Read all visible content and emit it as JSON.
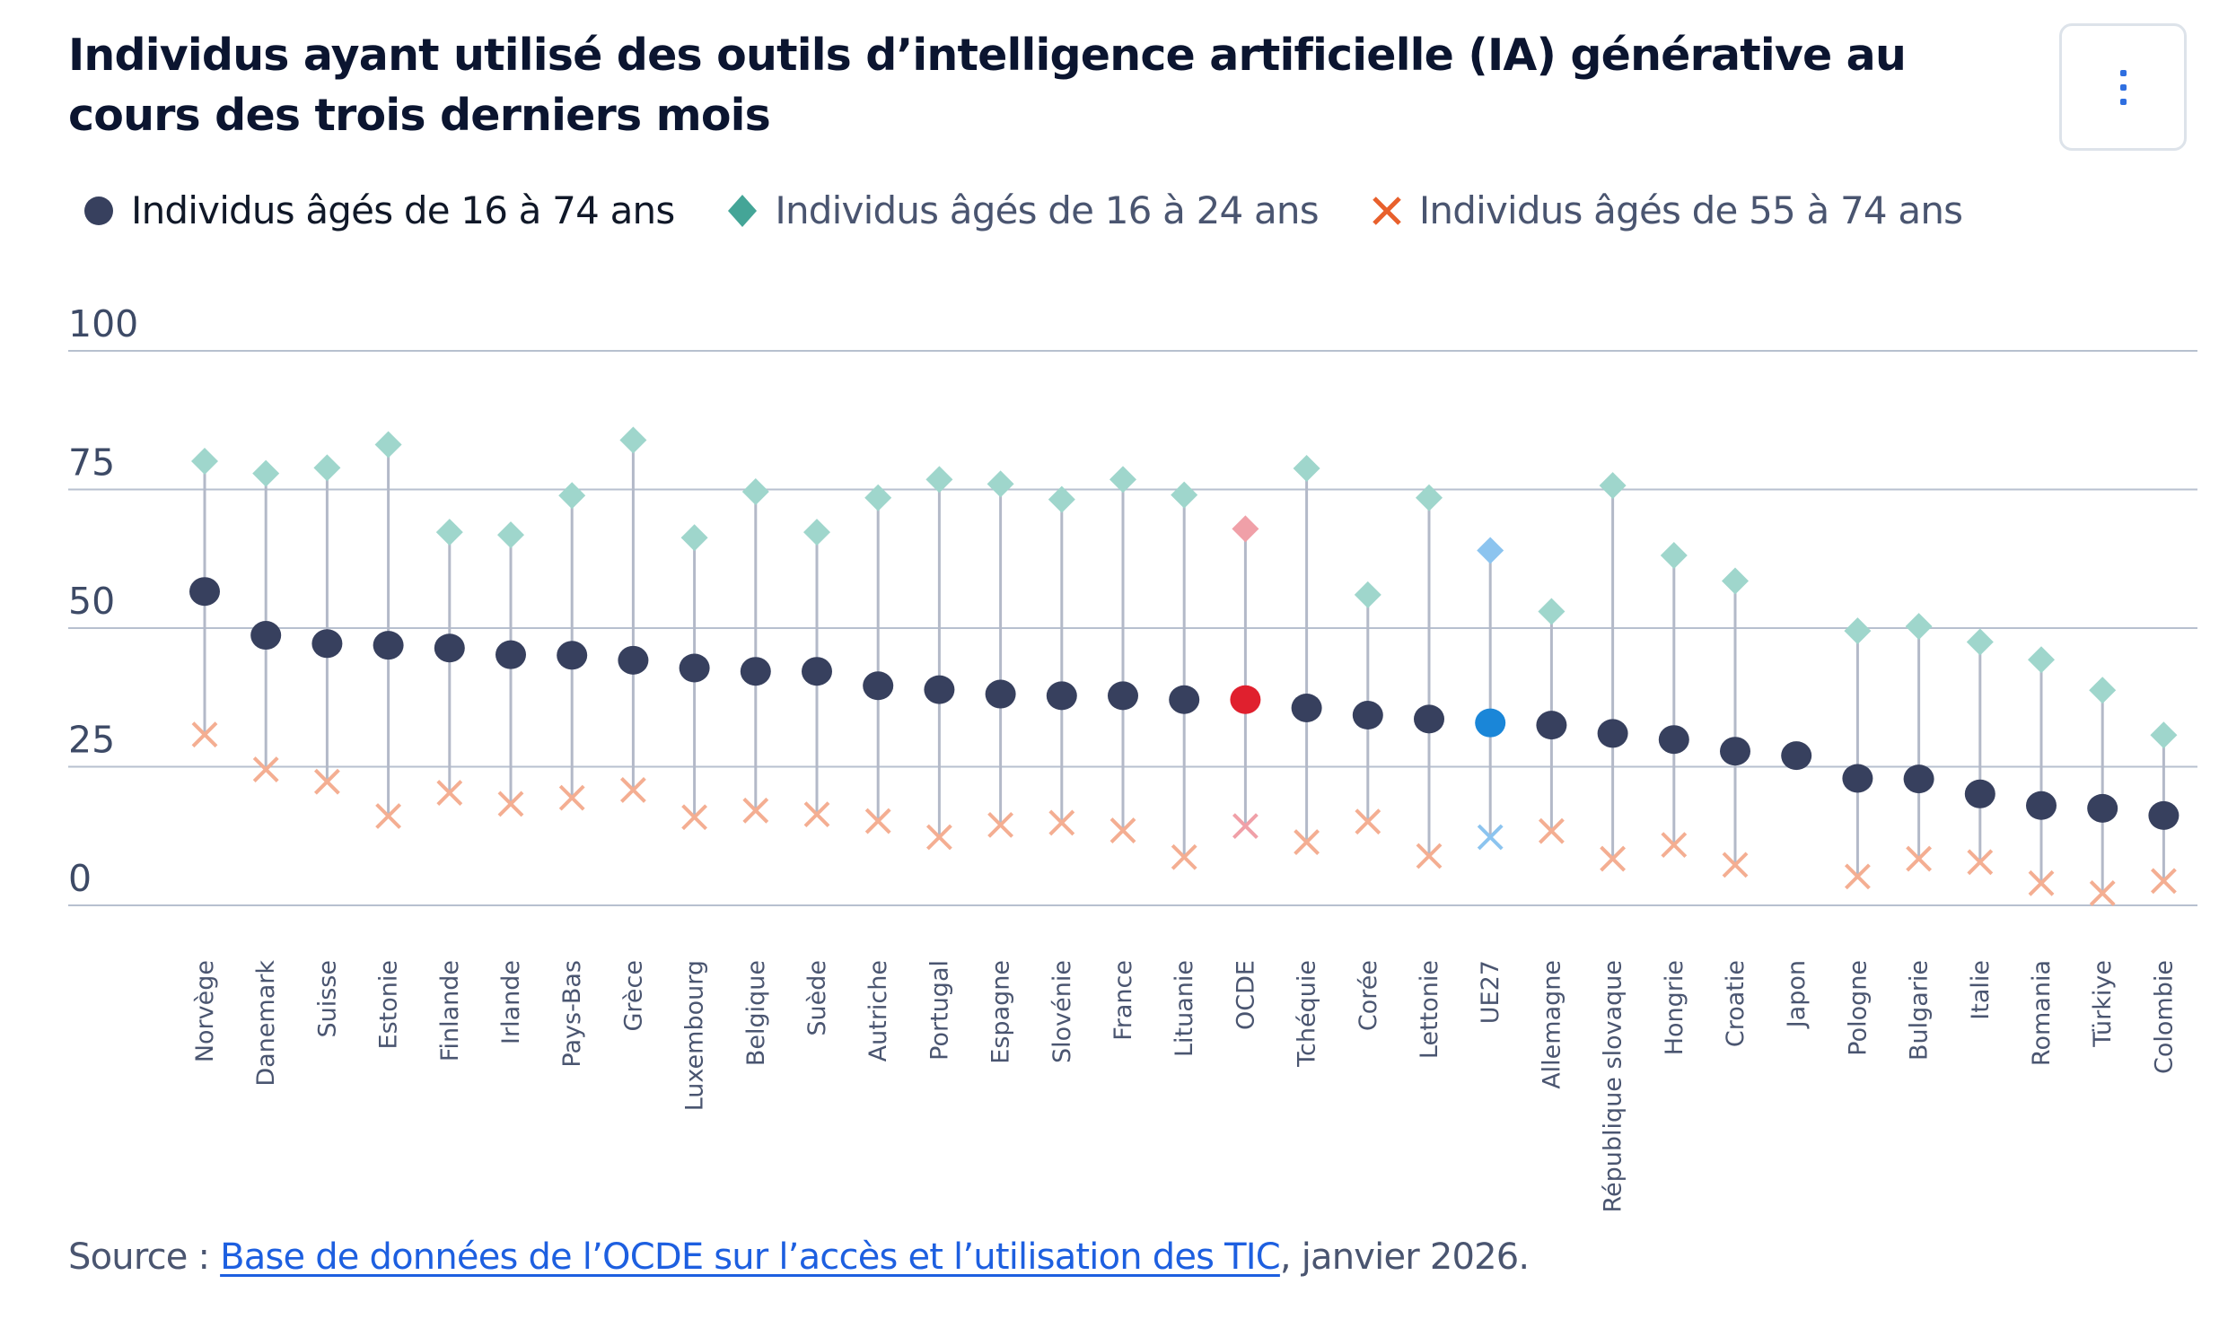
{
  "title": "Individus ayant utilisé des outils d’intelligence artificielle (IA) générative au cours des trois derniers mois",
  "menu": {
    "icon": "vertical-ellipsis-icon",
    "label": "Options"
  },
  "legend": [
    {
      "label": "Individus âgés de 16 à 74 ans",
      "marker": "circle",
      "color": "#37405e",
      "active": true
    },
    {
      "label": "Individus âgés de 16 à 24 ans",
      "marker": "diamond",
      "color": "#44a597",
      "active": false
    },
    {
      "label": "Individus âgés de 55 à 74 ans",
      "marker": "cross",
      "color": "#e8602c",
      "active": false
    }
  ],
  "source": {
    "prefix": "Source : ",
    "link_text": "Base de données de l’OCDE sur l’accès et l’utilisation des TIC",
    "suffix": ", janvier 2026."
  },
  "chart_data": {
    "type": "scatter",
    "subtype": "dot-range",
    "title": "Individus ayant utilisé des outils d’intelligence artificielle (IA) générative au cours des trois derniers mois",
    "xlabel": "",
    "ylabel": "",
    "ylim": [
      0,
      100
    ],
    "yticks": [
      0,
      25,
      50,
      75,
      100
    ],
    "grid": true,
    "legend_position": "top-left",
    "categories": [
      "Norvège",
      "Danemark",
      "Suisse",
      "Estonie",
      "Finlande",
      "Irlande",
      "Pays-Bas",
      "Grèce",
      "Luxembourg",
      "Belgique",
      "Suède",
      "Autriche",
      "Portugal",
      "Espagne",
      "Slovénie",
      "France",
      "Lituanie",
      "OCDE",
      "Tchéquie",
      "Corée",
      "Lettonie",
      "UE27",
      "Allemagne",
      "République slovaque",
      "Hongrie",
      "Croatie",
      "Japon",
      "Pologne",
      "Bulgarie",
      "Italie",
      "Romania",
      "Türkiye",
      "Colombie"
    ],
    "highlights": {
      "OCDE": "#e0202e",
      "UE27": "#1a86d8"
    },
    "colors": {
      "all": "#37405e",
      "young": "#9fd6cc",
      "old": "#f4ae92",
      "stem": "#b3b9c8",
      "grid": "#b7c0cf"
    },
    "series": [
      {
        "name": "Individus âgés de 16 à 74 ans",
        "marker": "circle",
        "values": [
          56.6,
          48.7,
          47.2,
          46.9,
          46.4,
          45.2,
          45.1,
          44.2,
          42.8,
          42.2,
          42.2,
          39.6,
          38.9,
          38.1,
          37.8,
          37.8,
          37.1,
          37.1,
          35.6,
          34.3,
          33.6,
          32.9,
          32.5,
          31.0,
          29.9,
          27.8,
          27.0,
          22.9,
          22.8,
          20.1,
          18.0,
          17.5,
          16.2
        ]
      },
      {
        "name": "Individus âgés de 16 à 24 ans",
        "marker": "diamond",
        "values": [
          80.1,
          77.9,
          78.9,
          83.1,
          67.3,
          66.8,
          73.9,
          83.9,
          66.3,
          74.6,
          67.3,
          73.5,
          76.8,
          76.0,
          73.2,
          76.8,
          74.0,
          67.9,
          78.8,
          56.0,
          73.5,
          64.0,
          53.0,
          75.7,
          63.1,
          58.5,
          null,
          49.5,
          50.3,
          47.5,
          44.3,
          38.8,
          30.7
        ]
      },
      {
        "name": "Individus âgés de 55 à 74 ans",
        "marker": "cross",
        "values": [
          30.8,
          24.5,
          22.3,
          16.1,
          20.3,
          18.3,
          19.4,
          20.8,
          15.9,
          17.1,
          16.4,
          15.2,
          12.3,
          14.5,
          14.9,
          13.5,
          8.7,
          14.3,
          11.4,
          15.1,
          8.9,
          12.3,
          13.4,
          8.4,
          10.9,
          7.3,
          null,
          5.2,
          8.4,
          7.8,
          4.0,
          2.2,
          4.4
        ]
      }
    ]
  }
}
